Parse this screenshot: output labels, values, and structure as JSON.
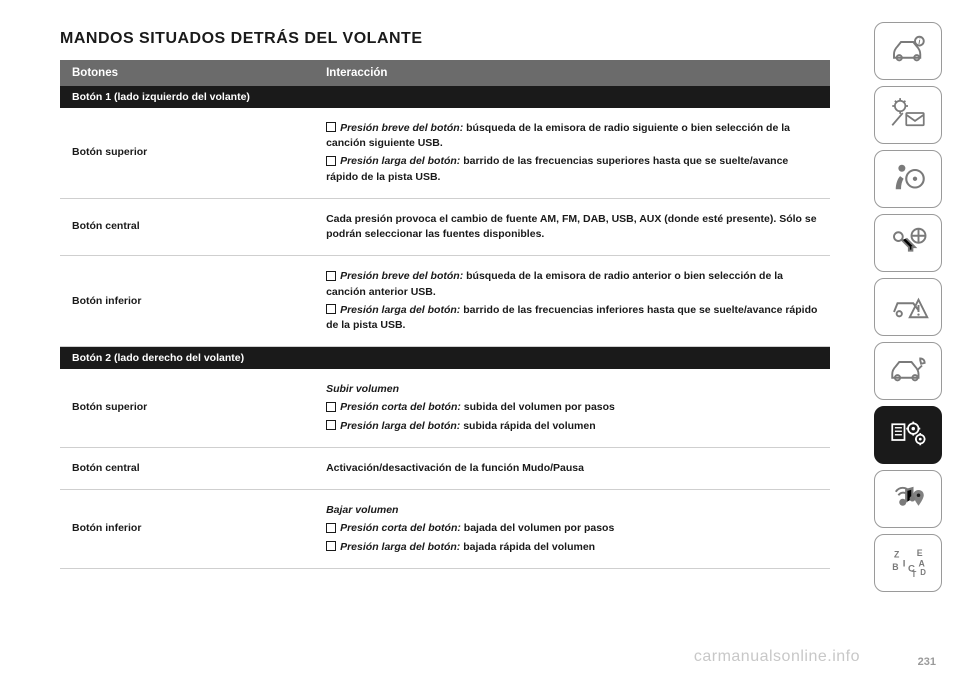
{
  "title": "MANDOS SITUADOS DETRÁS DEL VOLANTE",
  "page_number": "231",
  "watermark": "carmanualsonline.info",
  "table": {
    "header": {
      "col1": "Botones",
      "col2": "Interacción"
    },
    "sections": [
      {
        "heading": "Botón 1 (lado izquierdo del volante)",
        "rows": [
          {
            "label": "Botón superior",
            "lines": [
              {
                "icon": true,
                "bold": "Presión breve del botón:",
                "rest": " búsqueda de la emisora de radio siguiente o bien selección de la canción siguiente USB."
              },
              {
                "icon": true,
                "bold": "Presión larga del botón:",
                "rest": " barrido de las frecuencias superiores hasta que se suelte/avance rápido de la pista USB."
              }
            ]
          },
          {
            "label": "Botón central",
            "lines": [
              {
                "icon": false,
                "bold": "",
                "rest": "Cada presión provoca el cambio de fuente AM, FM, DAB, USB, AUX (donde esté presente). Sólo se podrán seleccionar las fuentes disponibles."
              }
            ]
          },
          {
            "label": "Botón inferior",
            "lines": [
              {
                "icon": true,
                "bold": "Presión breve del botón:",
                "rest": " búsqueda de la emisora de radio anterior o bien selección de la canción anterior USB."
              },
              {
                "icon": true,
                "bold": "Presión larga del botón:",
                "rest": " barrido de las frecuencias inferiores hasta que se suelte/avance rápido de la pista USB."
              }
            ]
          }
        ]
      },
      {
        "heading": "Botón 2 (lado derecho del volante)",
        "rows": [
          {
            "label": "Botón superior",
            "lines": [
              {
                "icon": false,
                "bold": "Subir volumen",
                "rest": ""
              },
              {
                "icon": true,
                "bold": "Presión corta del botón:",
                "rest": " subida del volumen por pasos"
              },
              {
                "icon": true,
                "bold": "Presión larga del botón:",
                "rest": " subida rápida del volumen"
              }
            ]
          },
          {
            "label": "Botón central",
            "lines": [
              {
                "icon": false,
                "bold": "",
                "rest": "Activación/desactivación de la función Mudo/Pausa"
              }
            ]
          },
          {
            "label": "Botón inferior",
            "lines": [
              {
                "icon": false,
                "bold": "Bajar volumen",
                "rest": ""
              },
              {
                "icon": true,
                "bold": "Presión corta del botón:",
                "rest": " bajada del volumen por pasos"
              },
              {
                "icon": true,
                "bold": "Presión larga del botón:",
                "rest": " bajada rápida del volumen"
              }
            ]
          }
        ]
      }
    ]
  },
  "sidebar": {
    "active_index": 6,
    "items": [
      {
        "name": "car-info-icon"
      },
      {
        "name": "lights-mail-icon"
      },
      {
        "name": "airbag-icon"
      },
      {
        "name": "key-wheel-icon"
      },
      {
        "name": "car-warning-icon"
      },
      {
        "name": "car-service-icon"
      },
      {
        "name": "settings-gears-icon"
      },
      {
        "name": "media-nav-icon"
      },
      {
        "name": "alphabet-icon"
      }
    ]
  },
  "style": {
    "bg": "#ffffff",
    "text": "#1a1a1a",
    "header_bg": "#6b6b6b",
    "header_fg": "#ffffff",
    "section_bg": "#1a1a1a",
    "section_fg": "#ffffff",
    "row_border": "#cfcfcf",
    "side_border": "#9a9a9a",
    "side_fg": "#7a7a7a",
    "side_active_bg": "#1a1a1a",
    "side_active_fg": "#ffffff",
    "title_fontsize": 16,
    "body_fontsize": 10.5
  }
}
